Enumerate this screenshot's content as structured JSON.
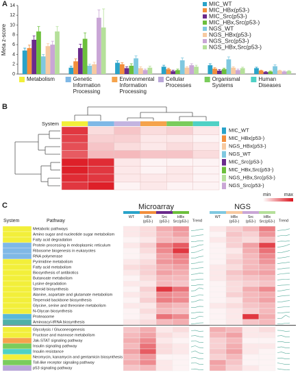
{
  "chart_data": [
    {
      "panel": "A",
      "type": "bar",
      "ylabel": "Meta z-score",
      "legend": "upper right",
      "categories": [
        "Metabolism",
        "Genetic Information Processing",
        "Environmental Information Processing",
        "Cellular Processes",
        "Organismal Systems",
        "Human Diseases"
      ],
      "category_colors": [
        "#f2ef3a",
        "#7fb8e6",
        "#f5a34c",
        "#b9a6d9",
        "#7acc5c",
        "#4fd1c5"
      ],
      "ylim": [
        0,
        14
      ],
      "yticks": [
        0,
        2,
        4,
        6,
        8,
        10,
        12,
        14
      ],
      "series": [
        {
          "name": "MIC_WT",
          "color": "#29a3c9",
          "values": [
            4.8,
            1.3,
            2.3,
            1.5,
            1.8,
            1.2
          ],
          "errors": [
            0.5,
            0.3,
            0.4,
            0.3,
            0.3,
            0.2
          ]
        },
        {
          "name": "MIC_HBx(p53-)",
          "color": "#f28e3c",
          "values": [
            5.3,
            2.6,
            2.0,
            1.0,
            1.1,
            0.7
          ],
          "errors": [
            0.6,
            0.5,
            0.3,
            0.2,
            0.2,
            0.1
          ]
        },
        {
          "name": "MIC_Src(p53-)",
          "color": "#6a2a8c",
          "values": [
            7.0,
            5.3,
            1.2,
            0.6,
            0.7,
            0.4
          ],
          "errors": [
            0.8,
            0.8,
            0.3,
            0.2,
            0.2,
            0.1
          ]
        },
        {
          "name": "MIC_HBx,Src(p53-)",
          "color": "#6cbf3c",
          "values": [
            8.7,
            7.2,
            1.7,
            0.8,
            1.0,
            0.5
          ],
          "errors": [
            1.0,
            1.2,
            0.4,
            0.2,
            0.2,
            0.1
          ]
        },
        {
          "name": "NGS_WT",
          "color": "#7fc8e0",
          "values": [
            3.6,
            1.7,
            3.2,
            2.8,
            3.0,
            1.6
          ],
          "errors": [
            0.4,
            0.3,
            0.5,
            0.5,
            0.5,
            0.3
          ]
        },
        {
          "name": "NGS_HBx(p53-)",
          "color": "#f7c9a0",
          "values": [
            5.7,
            2.0,
            1.2,
            1.3,
            1.3,
            0.7
          ],
          "errors": [
            0.5,
            0.4,
            0.3,
            0.2,
            0.2,
            0.1
          ]
        },
        {
          "name": "NGS_Src(p53-)",
          "color": "#c9a6d6",
          "values": [
            6.0,
            11.5,
            0.8,
            1.8,
            0.8,
            0.5
          ],
          "errors": [
            0.7,
            1.6,
            0.2,
            0.3,
            0.2,
            0.1
          ]
        },
        {
          "name": "NGS_HBx,Src(p53-)",
          "color": "#b5e09a",
          "values": [
            8.7,
            9.5,
            1.3,
            1.5,
            1.2,
            0.6
          ],
          "errors": [
            1.0,
            3.8,
            0.3,
            0.3,
            0.2,
            0.1
          ]
        }
      ]
    },
    {
      "panel": "B",
      "type": "heatmap",
      "system_label": "System",
      "column_colors": [
        "#f2ef3a",
        "#7fb8e6",
        "#c3b4e0",
        "#f5a34c",
        "#7acc5c",
        "#4fd1c5"
      ],
      "rows": [
        "MIC_WT",
        "MIC_HBx(p53-)",
        "NGS_HBx(p53-)",
        "NGS_WT",
        "MIC_Src(p53-)",
        "MIC_HBx,Src(p53-)",
        "NGS_HBx,Src(p53-)",
        "NGS_Src(p53-)"
      ],
      "row_colors": [
        "#29a3c9",
        "#f28e3c",
        "#f7c9a0",
        "#7fc8e0",
        "#6a2a8c",
        "#6cbf3c",
        "#b5e09a",
        "#c9a6d6"
      ],
      "values": [
        [
          0.85,
          0.15,
          0.25,
          0.15,
          0.2,
          0.1
        ],
        [
          0.8,
          0.2,
          0.2,
          0.1,
          0.1,
          0.05
        ],
        [
          0.75,
          0.25,
          0.15,
          0.1,
          0.15,
          0.1
        ],
        [
          0.7,
          0.3,
          0.3,
          0.25,
          0.25,
          0.15
        ],
        [
          0.95,
          0.9,
          0.1,
          0.05,
          0.05,
          0.05
        ],
        [
          0.95,
          0.85,
          0.1,
          0.05,
          0.1,
          0.05
        ],
        [
          0.9,
          0.85,
          0.1,
          0.1,
          0.1,
          0.05
        ],
        [
          0.85,
          0.95,
          0.05,
          0.1,
          0.05,
          0.05
        ]
      ],
      "scale_labels": [
        "min",
        "max"
      ]
    },
    {
      "panel": "C",
      "type": "heatmap_table",
      "system_label": "System",
      "pathway_label": "Pathway",
      "groups": [
        {
          "name": "Microarray",
          "columns": [
            "WT",
            "HBx (p53-)",
            "Src (p53-)",
            "HBx Src(p53-)"
          ],
          "colors": [
            "#29a3c9",
            "#f28e3c",
            "#6a2a8c",
            "#6cbf3c"
          ],
          "trend": "Trend"
        },
        {
          "name": "NGS",
          "columns": [
            "WT",
            "HBx (p53-)",
            "Src (p53-)",
            "HBx Src(p53-)"
          ],
          "colors": [
            "#7fc8e0",
            "#f7c9a0",
            "#c9a6d6",
            "#b5e09a"
          ],
          "trend": "Trend"
        }
      ],
      "blocks": [
        [
          {
            "pathway": "Metabolic pathways",
            "color": "#f2ef3a",
            "values": [
              [
                0.1,
                0.15,
                0.35,
                0.45
              ],
              [
                0.1,
                0.2,
                0.3,
                0.55
              ]
            ]
          },
          {
            "pathway": "Amino sugar and nucleotide sugar metabolism",
            "color": "#f2ef3a",
            "values": [
              [
                0.1,
                0.15,
                0.3,
                0.4
              ],
              [
                0.05,
                0.25,
                0.2,
                0.45
              ]
            ]
          },
          {
            "pathway": "Fatty acid degradation",
            "color": "#f2ef3a",
            "values": [
              [
                0.05,
                0.1,
                0.3,
                0.3
              ],
              [
                0.1,
                0.2,
                0.15,
                0.3
              ]
            ]
          },
          {
            "pathway": "Protein processing in endoplasmic reticulum",
            "color": "#7fb8e6",
            "values": [
              [
                0.1,
                0.2,
                0.55,
                0.7
              ],
              [
                0.05,
                0.2,
                0.4,
                0.8
              ]
            ]
          },
          {
            "pathway": "Ribosome biogenesis in eukaryotes",
            "color": "#7fb8e6",
            "values": [
              [
                0.05,
                0.15,
                0.5,
                0.85
              ],
              [
                0.05,
                0.1,
                0.35,
                0.6
              ]
            ]
          },
          {
            "pathway": "RNA polymerase",
            "color": "#7fb8e6",
            "values": [
              [
                0.05,
                0.1,
                0.4,
                0.55
              ],
              [
                0.05,
                0.15,
                0.3,
                0.5
              ]
            ]
          },
          {
            "pathway": "Pyrimidine metabolism",
            "color": "#f2ef3a",
            "values": [
              [
                0.1,
                0.15,
                0.45,
                0.5
              ],
              [
                0.05,
                0.2,
                0.3,
                0.45
              ]
            ]
          },
          {
            "pathway": "Fatty acid metabolism",
            "color": "#f2ef3a",
            "values": [
              [
                0.15,
                0.2,
                0.35,
                0.4
              ],
              [
                0.1,
                0.15,
                0.3,
                0.35
              ]
            ]
          },
          {
            "pathway": "Biosynthesis of antibiotics",
            "color": "#f2ef3a",
            "values": [
              [
                0.1,
                0.2,
                0.4,
                0.35
              ],
              [
                0.1,
                0.25,
                0.35,
                0.4
              ]
            ]
          },
          {
            "pathway": "Butanoate metabolism",
            "color": "#f2ef3a",
            "values": [
              [
                0.05,
                0.15,
                0.3,
                0.3
              ],
              [
                0.1,
                0.2,
                0.25,
                0.3
              ]
            ]
          },
          {
            "pathway": "Lysine degradation",
            "color": "#f2ef3a",
            "values": [
              [
                0.1,
                0.1,
                0.3,
                0.25
              ],
              [
                0.05,
                0.15,
                0.2,
                0.25
              ]
            ]
          },
          {
            "pathway": "Steroid biosynthesis",
            "color": "#f2ef3a",
            "values": [
              [
                0.05,
                0.2,
                0.85,
                0.6
              ],
              [
                0.05,
                0.15,
                0.35,
                0.5
              ]
            ]
          },
          {
            "pathway": "Alanine, aspartate and glutamate metabolism",
            "color": "#f2ef3a",
            "values": [
              [
                0.1,
                0.15,
                0.5,
                0.45
              ],
              [
                0.05,
                0.2,
                0.3,
                0.35
              ]
            ]
          },
          {
            "pathway": "Terpenoid backbone biosynthesis",
            "color": "#f2ef3a",
            "values": [
              [
                0.05,
                0.2,
                0.55,
                0.5
              ],
              [
                0.05,
                0.1,
                0.3,
                0.4
              ]
            ]
          },
          {
            "pathway": "Glycine, serine and threonine metabolism",
            "color": "#f2ef3a",
            "values": [
              [
                0.1,
                0.1,
                0.35,
                0.3
              ],
              [
                0.1,
                0.15,
                0.25,
                0.3
              ]
            ]
          },
          {
            "pathway": "N-Glycan biosynthesis",
            "color": "#f2ef3a",
            "values": [
              [
                0.05,
                0.15,
                0.3,
                0.25
              ],
              [
                0.05,
                0.1,
                0.2,
                0.3
              ]
            ]
          },
          {
            "pathway": "Proteasome",
            "color": "#5ab8d8",
            "values": [
              [
                0.05,
                0.1,
                0.6,
                0.5
              ],
              [
                0.05,
                0.1,
                0.85,
                0.35
              ]
            ]
          },
          {
            "pathway": "Aminoacyl-tRNA biosynthesis",
            "color": "#4fb0a8",
            "values": [
              [
                0.1,
                0.15,
                0.3,
                0.35
              ],
              [
                0.05,
                0.1,
                0.25,
                0.3
              ]
            ]
          }
        ],
        [
          {
            "pathway": "Glycolysis / Gluconeogenesis",
            "color": "#f2ef3a",
            "values": [
              [
                0.25,
                0.35,
                0.1,
                0.15
              ],
              [
                0.35,
                0.3,
                0.1,
                0.15
              ]
            ]
          },
          {
            "pathway": "Fructose and mannose metabolism",
            "color": "#f2ef3a",
            "values": [
              [
                0.3,
                0.4,
                0.15,
                0.1
              ],
              [
                0.3,
                0.4,
                0.1,
                0.1
              ]
            ]
          },
          {
            "pathway": "Jak-STAT signaling pathway",
            "color": "#f5a34c",
            "values": [
              [
                0.35,
                0.5,
                0.1,
                0.05
              ],
              [
                0.2,
                0.3,
                0.05,
                0.05
              ]
            ]
          },
          {
            "pathway": "Insulin signaling pathway",
            "color": "#7acc5c",
            "values": [
              [
                0.3,
                0.6,
                0.15,
                0.1
              ],
              [
                0.2,
                0.35,
                0.1,
                0.1
              ]
            ]
          },
          {
            "pathway": "Insulin resistance",
            "color": "#4fd1c5",
            "values": [
              [
                0.4,
                0.7,
                0.15,
                0.1
              ],
              [
                0.25,
                0.4,
                0.1,
                0.05
              ]
            ]
          },
          {
            "pathway": "Neomycin, kanamycin and gentamicin biosynthesis",
            "color": "#f2ef3a",
            "values": [
              [
                0.3,
                0.45,
                0.05,
                0.05
              ],
              [
                0.2,
                0.3,
                0.05,
                0.05
              ]
            ]
          },
          {
            "pathway": "Toll-like receptor signaling pathway",
            "color": "#7acc5c",
            "values": [
              [
                0.35,
                0.5,
                0.1,
                0.05
              ],
              [
                0.4,
                0.25,
                0.05,
                0.05
              ]
            ]
          },
          {
            "pathway": "p53 signaling pathway",
            "color": "#b9a6d9",
            "values": [
              [
                0.25,
                0.3,
                0.1,
                0.05
              ],
              [
                0.35,
                0.2,
                0.1,
                0.05
              ]
            ]
          }
        ]
      ]
    }
  ]
}
